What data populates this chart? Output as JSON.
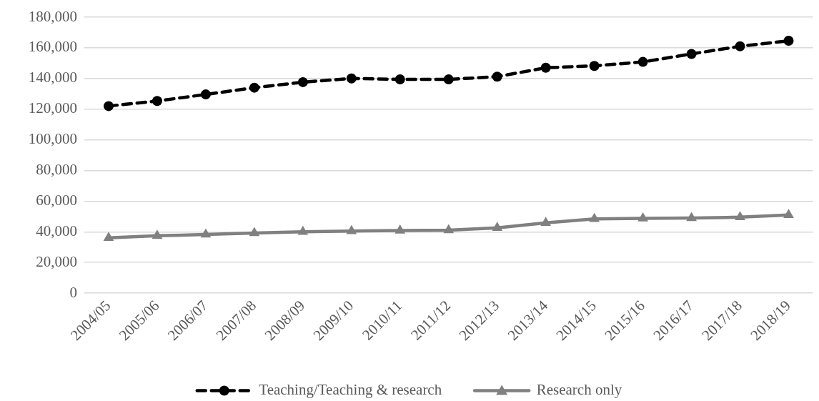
{
  "chart_data": {
    "type": "line",
    "categories": [
      "2004/05",
      "2005/06",
      "2006/07",
      "2007/08",
      "2008/09",
      "2009/10",
      "2010/11",
      "2011/12",
      "2012/13",
      "2013/14",
      "2014/15",
      "2015/16",
      "2016/17",
      "2017/18",
      "2018/19"
    ],
    "series": [
      {
        "name": "Teaching/Teaching & research",
        "color": "#000000",
        "marker": "circle",
        "line_style": "dashed",
        "values": [
          122000,
          125300,
          129600,
          134000,
          137600,
          140000,
          139400,
          139400,
          141200,
          147000,
          148200,
          150800,
          156000,
          161000,
          164600
        ]
      },
      {
        "name": "Research only",
        "color": "#808080",
        "marker": "triangle",
        "line_style": "solid",
        "values": [
          36000,
          37400,
          38200,
          39200,
          40000,
          40500,
          40800,
          41000,
          42600,
          45800,
          48400,
          48700,
          49000,
          49500,
          50900
        ]
      }
    ],
    "ylim": [
      0,
      180000
    ],
    "yticks": [
      0,
      {
        "value": 20000,
        "label": "20,000"
      },
      {
        "value": 40000,
        "label": "40,000"
      },
      {
        "value": 60000,
        "label": "60,000"
      },
      {
        "value": 80000,
        "label": "80,000"
      },
      {
        "value": 100000,
        "label": "100,000"
      },
      {
        "value": 120000,
        "label": "120,000"
      },
      {
        "value": 140000,
        "label": "140,000"
      },
      {
        "value": 160000,
        "label": "160,000"
      },
      {
        "value": 180000,
        "label": "180,000"
      }
    ],
    "grid": "y",
    "legend": "bottom"
  }
}
